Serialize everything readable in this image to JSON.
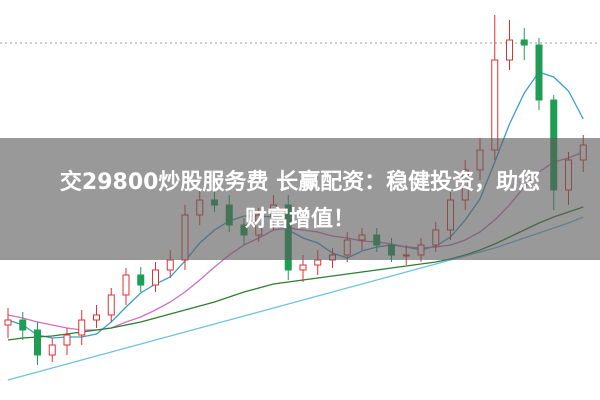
{
  "chart_data": {
    "type": "candlestick",
    "banner_lines": [
      "交29800炒股服务费 长赢配资：稳健投资，助您",
      "财富增值！"
    ],
    "ylim": [
      0,
      400
    ],
    "open": [
      75,
      80,
      70,
      45,
      55,
      65,
      80,
      85,
      105,
      125,
      115,
      130,
      140,
      185,
      200,
      195,
      175,
      165,
      185,
      195,
      130,
      135,
      140,
      145,
      160,
      165,
      155,
      145,
      145,
      155,
      170,
      200,
      230,
      250,
      340,
      360,
      355,
      300,
      210,
      240
    ],
    "high": [
      92,
      88,
      78,
      62,
      72,
      90,
      95,
      112,
      132,
      133,
      138,
      150,
      195,
      210,
      212,
      205,
      182,
      192,
      205,
      205,
      145,
      150,
      152,
      168,
      172,
      172,
      162,
      155,
      162,
      178,
      208,
      240,
      262,
      385,
      380,
      372,
      362,
      305,
      248,
      265
    ],
    "low": [
      62,
      60,
      35,
      38,
      45,
      55,
      72,
      78,
      95,
      108,
      108,
      122,
      130,
      175,
      188,
      168,
      155,
      158,
      170,
      120,
      118,
      125,
      132,
      138,
      150,
      148,
      138,
      135,
      138,
      148,
      160,
      190,
      220,
      240,
      330,
      340,
      290,
      190,
      195,
      228
    ],
    "close": [
      80,
      70,
      45,
      55,
      65,
      80,
      85,
      105,
      125,
      115,
      130,
      140,
      185,
      200,
      195,
      175,
      165,
      185,
      195,
      130,
      135,
      140,
      145,
      160,
      165,
      155,
      145,
      145,
      155,
      170,
      200,
      230,
      250,
      340,
      360,
      355,
      300,
      210,
      240,
      255
    ],
    "up_color": "#e03030",
    "down_color": "#1f9d55",
    "series": [
      {
        "color": "#3aa0c8",
        "values": [
          80,
          75,
          65,
          62,
          63,
          63,
          66,
          78,
          93,
          107,
          116,
          123,
          139,
          157,
          170,
          179,
          184,
          184,
          183,
          170,
          162,
          157,
          147,
          142,
          149,
          153,
          155,
          153,
          150,
          154,
          163,
          180,
          201,
          238,
          276,
          307,
          328,
          323,
          309,
          281
        ]
      },
      {
        "color": "#d070c0",
        "values": [
          85,
          82,
          78,
          75,
          72,
          70,
          70,
          72,
          78,
          83,
          90,
          98,
          108,
          120,
          133,
          145,
          155,
          162,
          170,
          172,
          170,
          168,
          164,
          162,
          159,
          158,
          156,
          153,
          152,
          153,
          155,
          160,
          168,
          180,
          195,
          213,
          228,
          238,
          242,
          248
        ]
      },
      {
        "color": "#2e7d32",
        "values": [
          60,
          62,
          63,
          64,
          66,
          68,
          70,
          72,
          75,
          78,
          82,
          86,
          90,
          94,
          98,
          103,
          108,
          112,
          116,
          118,
          120,
          122,
          124,
          126,
          128,
          130,
          132,
          134,
          136,
          138,
          141,
          145,
          150,
          156,
          163,
          170,
          177,
          183,
          188,
          193
        ]
      },
      {
        "color": "#6fc3df",
        "values": [
          20,
          24,
          28,
          32,
          36,
          40,
          44,
          48,
          52,
          56,
          60,
          64,
          68,
          72,
          76,
          80,
          84,
          88,
          92,
          96,
          100,
          104,
          108,
          112,
          116,
          120,
          124,
          128,
          132,
          136,
          140,
          144,
          148,
          152,
          157,
          162,
          167,
          172,
          177,
          183
        ]
      }
    ]
  }
}
